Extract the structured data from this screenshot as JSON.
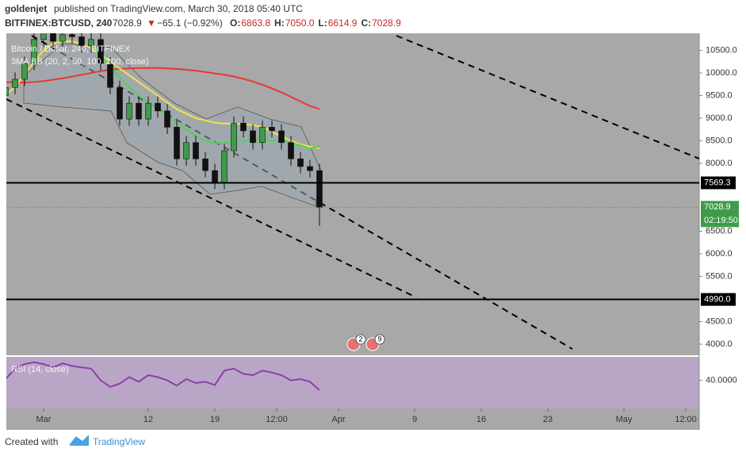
{
  "header": {
    "author": "goldenjet",
    "published": "published on TradingView.com, March 30, 2018 05:40 UTC",
    "symbol": "BITFINEX:BTCUSD, 240",
    "price": "7028.9",
    "arrow": "▼",
    "change": "−65.1 (−0.92%)",
    "ohlc": [
      {
        "label": "O:",
        "value": "6863.8"
      },
      {
        "label": "H:",
        "value": "7050.0"
      },
      {
        "label": "L:",
        "value": "6614.9"
      },
      {
        "label": "C:",
        "value": "7028.9"
      }
    ]
  },
  "chart_data": {
    "type": "candlestick",
    "legend": [
      "Bitcoin / Dollar, 240, BITFINEX",
      "3MA BB (20, 2, 50, 100, 200, close)"
    ],
    "x": [
      "2018-02-25",
      "2018-02-26",
      "2018-02-27",
      "2018-02-28",
      "2018-03-01",
      "2018-03-02",
      "2018-03-03",
      "2018-03-04",
      "2018-03-05",
      "2018-03-06",
      "2018-03-07",
      "2018-03-08",
      "2018-03-09",
      "2018-03-10",
      "2018-03-11",
      "2018-03-12",
      "2018-03-13",
      "2018-03-14",
      "2018-03-15",
      "2018-03-16",
      "2018-03-17",
      "2018-03-18",
      "2018-03-19",
      "2018-03-20",
      "2018-03-21",
      "2018-03-22",
      "2018-03-23",
      "2018-03-24",
      "2018-03-25",
      "2018-03-26",
      "2018-03-27",
      "2018-03-28",
      "2018-03-29",
      "2018-03-30"
    ],
    "open": [
      9500,
      9680,
      9860,
      10210,
      10740,
      10900,
      10700,
      10850,
      10800,
      10600,
      10740,
      10200,
      9680,
      8980,
      9330,
      8980,
      9330,
      9160,
      8800,
      8100,
      8460,
      8100,
      7840,
      7580,
      8280,
      8890,
      8720,
      8460,
      8800,
      8720,
      8460,
      8100,
      7930,
      7840
    ],
    "high": [
      9830,
      10010,
      10360,
      10890,
      11050,
      11050,
      11000,
      11000,
      10950,
      10890,
      10890,
      10350,
      9830,
      9480,
      9480,
      9480,
      9480,
      9310,
      8950,
      8610,
      8610,
      8250,
      7990,
      8430,
      9040,
      9040,
      8870,
      8950,
      8950,
      8870,
      8610,
      8250,
      8080,
      7990
    ],
    "low": [
      9350,
      9530,
      9710,
      10060,
      10590,
      10550,
      10550,
      10650,
      10450,
      10450,
      10050,
      9530,
      8830,
      8830,
      8830,
      8830,
      9010,
      8650,
      7950,
      7950,
      7950,
      7690,
      7430,
      7430,
      8130,
      8570,
      8310,
      8310,
      8570,
      8310,
      7950,
      7780,
      7690,
      6614.9
    ],
    "close": [
      9680,
      9860,
      10210,
      10740,
      10900,
      10700,
      10850,
      10800,
      10600,
      10740,
      10200,
      9680,
      8980,
      9330,
      8980,
      9330,
      9160,
      8800,
      8100,
      8460,
      8100,
      7840,
      7580,
      8280,
      8890,
      8720,
      8460,
      8800,
      8720,
      8460,
      8100,
      7930,
      7840,
      7028.9
    ],
    "up_color": "#3f9b4a",
    "down_color": "#111111",
    "series": [
      {
        "color": "#e53935",
        "values": [
          9800,
          9790,
          9790,
          9800,
          9820,
          9850,
          9880,
          9920,
          9960,
          10000,
          10040,
          10070,
          10090,
          10100,
          10110,
          10110,
          10110,
          10100,
          10090,
          10070,
          10050,
          10020,
          9990,
          9960,
          9920,
          9870,
          9810,
          9740,
          9660,
          9570,
          9470,
          9370,
          9270,
          9200
        ]
      },
      {
        "color": "#f2e34a",
        "values": [
          9500,
          9700,
          9950,
          10250,
          10500,
          10650,
          10700,
          10700,
          10650,
          10550,
          10400,
          10250,
          10100,
          9950,
          9800,
          9650,
          9500,
          9350,
          9200,
          9100,
          9000,
          8950,
          8900,
          8880,
          8880,
          8870,
          8850,
          8800,
          8700,
          8600,
          8500,
          8420,
          8370,
          8330
        ]
      },
      {
        "color": "#4cd45a",
        "values": [
          null,
          null,
          null,
          null,
          null,
          null,
          null,
          null,
          null,
          10600,
          10400,
          10150,
          9900,
          9700,
          9500,
          9350,
          9200,
          9050,
          8900,
          8750,
          8600,
          8500,
          8450,
          8450,
          8480,
          8500,
          8520,
          8520,
          8500,
          8480,
          8450,
          8400,
          8330,
          8380
        ]
      }
    ],
    "levels": [
      {
        "value": 7569.3,
        "label": "7569.3"
      },
      {
        "value": 4990,
        "label": "4990.0"
      }
    ],
    "countdown": "02:19:50",
    "xlim": [
      "2018-02-25T02:00",
      "2018-05-08T22:00"
    ],
    "xticks": [
      {
        "value": "2018-03-01",
        "label": "Mar"
      },
      {
        "value": "2018-03-12",
        "label": "12"
      },
      {
        "value": "2018-03-19",
        "label": "19"
      },
      {
        "value": "2018-03-25T12:00",
        "label": "12:00"
      },
      {
        "value": "2018-04-01",
        "label": "Apr"
      },
      {
        "value": "2018-04-09",
        "label": "9"
      },
      {
        "value": "2018-04-16",
        "label": "16"
      },
      {
        "value": "2018-04-23",
        "label": "23"
      },
      {
        "value": "2018-05-01",
        "label": "May"
      },
      {
        "value": "2018-05-07T12:00",
        "label": "12:00"
      }
    ],
    "ylim": [
      3754,
      10877
    ],
    "yticks": [
      {
        "value": 4000,
        "label": "4000.0"
      },
      {
        "value": 4500,
        "label": "4500.0"
      },
      {
        "value": 5500,
        "label": "5500.0"
      },
      {
        "value": 6000,
        "label": "6000.0"
      },
      {
        "value": 6500,
        "label": "6500.0"
      },
      {
        "value": 8000,
        "label": "8000.0"
      },
      {
        "value": 8500,
        "label": "8500.0"
      },
      {
        "value": 9000,
        "label": "9000.0"
      },
      {
        "value": 9500,
        "label": "9500.0"
      },
      {
        "value": 10000,
        "label": "10000.0"
      },
      {
        "value": 10500,
        "label": "10500.0"
      }
    ],
    "rsi": {
      "name": "RSI (14, close)",
      "color": "#8e3ea8",
      "values": [
        42,
        58,
        65,
        68,
        65,
        60,
        66,
        62,
        60,
        58,
        40,
        30,
        35,
        45,
        38,
        48,
        45,
        40,
        32,
        42,
        36,
        38,
        33,
        55,
        58,
        50,
        48,
        55,
        52,
        48,
        40,
        42,
        38,
        25
      ],
      "ylim": [
        -3,
        76
      ],
      "yticks": [
        {
          "value": 40,
          "label": "40.0000"
        }
      ]
    },
    "events": [
      "2",
      "9"
    ]
  },
  "footer": {
    "created": "Created with",
    "brand": "TradingView"
  }
}
